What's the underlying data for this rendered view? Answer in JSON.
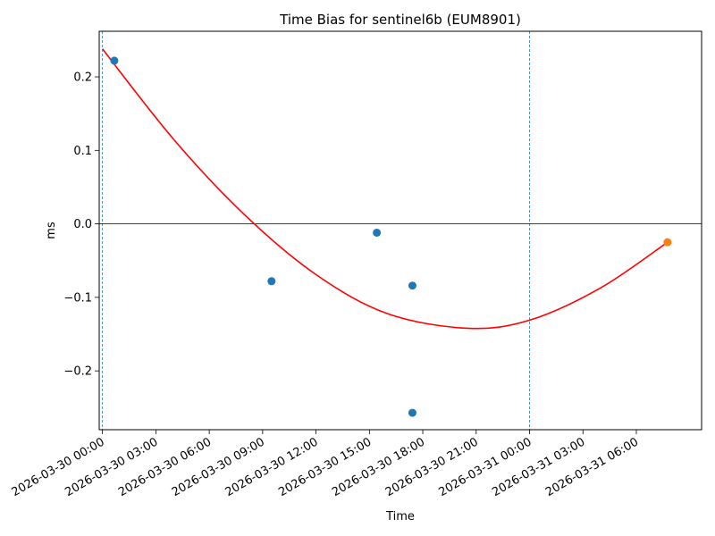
{
  "chart_data": {
    "type": "scatter",
    "title": "Time Bias for sentinel6b (EUM8901)",
    "xlabel": "Time",
    "ylabel": "ms",
    "xlim": [
      "2026-03-29T23:49",
      "2026-03-31T09:40"
    ],
    "ylim": [
      -0.28,
      0.262
    ],
    "x_ticks": [
      {
        "value": "2026-03-30T00:00",
        "label": "2026-03-30 00:00"
      },
      {
        "value": "2026-03-30T03:00",
        "label": "2026-03-30 03:00"
      },
      {
        "value": "2026-03-30T06:00",
        "label": "2026-03-30 06:00"
      },
      {
        "value": "2026-03-30T09:00",
        "label": "2026-03-30 09:00"
      },
      {
        "value": "2026-03-30T12:00",
        "label": "2026-03-30 12:00"
      },
      {
        "value": "2026-03-30T15:00",
        "label": "2026-03-30 15:00"
      },
      {
        "value": "2026-03-30T18:00",
        "label": "2026-03-30 18:00"
      },
      {
        "value": "2026-03-30T21:00",
        "label": "2026-03-30 21:00"
      },
      {
        "value": "2026-03-31T00:00",
        "label": "2026-03-31 00:00"
      },
      {
        "value": "2026-03-31T03:00",
        "label": "2026-03-31 03:00"
      },
      {
        "value": "2026-03-31T06:00",
        "label": "2026-03-31 06:00"
      }
    ],
    "y_ticks": [
      {
        "value": 0.2,
        "label": "0.2"
      },
      {
        "value": 0.1,
        "label": "0.1"
      },
      {
        "value": 0.0,
        "label": "0.0"
      },
      {
        "value": -0.1,
        "label": "−0.1"
      },
      {
        "value": -0.2,
        "label": "−0.2"
      }
    ],
    "series": [
      {
        "color": "#1f77b4",
        "points": [
          {
            "x": "2026-03-30T00:40",
            "y": 0.222
          },
          {
            "x": "2026-03-30T09:30",
            "y": -0.078
          },
          {
            "x": "2026-03-30T15:25",
            "y": -0.012
          },
          {
            "x": "2026-03-30T17:25",
            "y": -0.084
          },
          {
            "x": "2026-03-30T17:25",
            "y": -0.257
          }
        ]
      },
      {
        "color": "#ff7f0e",
        "points": [
          {
            "x": "2026-03-31T07:45",
            "y": -0.025
          }
        ]
      }
    ],
    "fit_curve": {
      "color": "#ff0000",
      "points": [
        {
          "x": "2026-03-30T00:00",
          "y": 0.238
        },
        {
          "x": "2026-03-30T04:00",
          "y": 0.115
        },
        {
          "x": "2026-03-30T08:00",
          "y": 0.012
        },
        {
          "x": "2026-03-30T12:00",
          "y": -0.069
        },
        {
          "x": "2026-03-30T16:00",
          "y": -0.122
        },
        {
          "x": "2026-03-30T20:30",
          "y": -0.142
        },
        {
          "x": "2026-03-31T00:00",
          "y": -0.131
        },
        {
          "x": "2026-03-31T04:00",
          "y": -0.087
        },
        {
          "x": "2026-03-31T07:45",
          "y": -0.025
        }
      ]
    },
    "vertical_lines": [
      "2026-03-30T00:00",
      "2026-03-31T00:00"
    ],
    "horizontal_line": 0.0,
    "grid": false,
    "legend": "none"
  }
}
